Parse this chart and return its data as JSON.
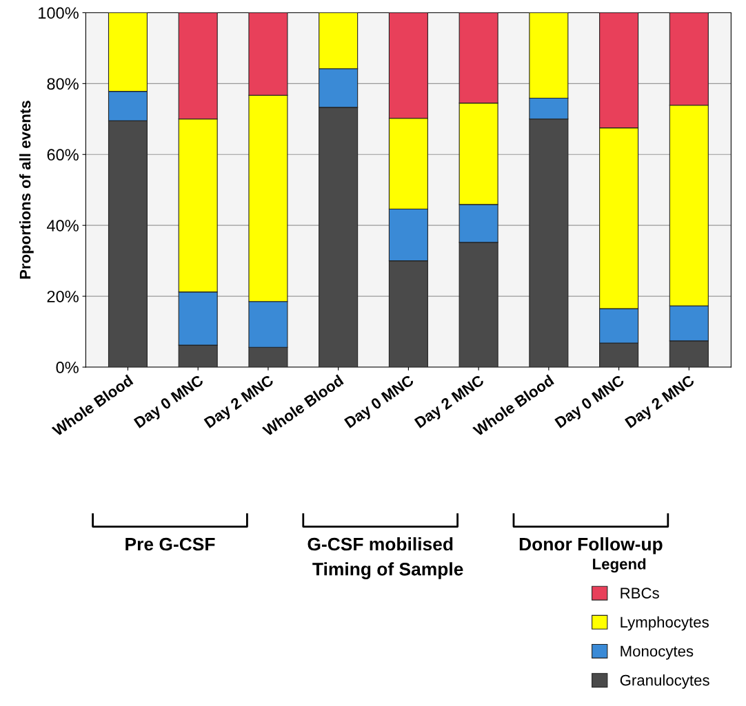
{
  "chart_data": {
    "type": "bar",
    "stacked": true,
    "categories": [
      "Whole Blood",
      "Day 0 MNC",
      "Day 2 MNC",
      "Whole Blood",
      "Day 0 MNC",
      "Day 2 MNC",
      "Whole Blood",
      "Day 0 MNC",
      "Day 2 MNC"
    ],
    "series": [
      {
        "name": "Granulocytes",
        "color": "#4a4a4a",
        "values": [
          69.5,
          6.2,
          5.6,
          73.3,
          30,
          35.2,
          70,
          6.8,
          7.4
        ]
      },
      {
        "name": "Monocytes",
        "color": "#3a8ad6",
        "values": [
          8.3,
          15,
          12.9,
          10.9,
          14.6,
          10.7,
          5.9,
          9.7,
          9.9
        ]
      },
      {
        "name": "Lymphocytes",
        "color": "#ffff00",
        "values": [
          22.2,
          48.8,
          58.2,
          15.8,
          25.6,
          28.6,
          24.1,
          51,
          56.6
        ]
      },
      {
        "name": "RBCs",
        "color": "#e8405a",
        "values": [
          0,
          30,
          23.3,
          0,
          29.8,
          25.5,
          0,
          32.5,
          26.1
        ]
      }
    ],
    "ylabel": "Proportions of all events",
    "legend_title": "Legend",
    "annotations": [
      "Pre G-CSF",
      "G-CSF mobilised",
      "Donor Follow-up",
      "Timing of Sample"
    ],
    "ylim": [
      0,
      100
    ],
    "yticks": [
      {
        "value": 0,
        "label": "0%"
      },
      {
        "value": 20,
        "label": "20%"
      },
      {
        "value": 40,
        "label": "40%"
      },
      {
        "value": 60,
        "label": "60%"
      },
      {
        "value": 80,
        "label": "80%"
      },
      {
        "value": 100,
        "label": "100%"
      }
    ],
    "grid": "y",
    "legend": "bottom right"
  }
}
